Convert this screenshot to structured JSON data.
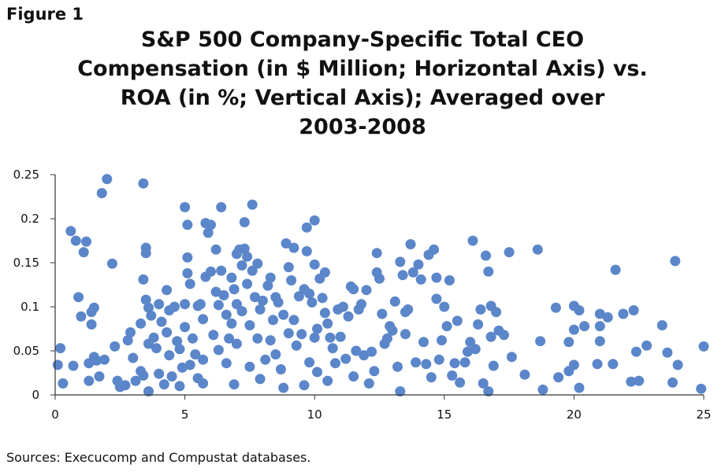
{
  "figure_label": "Figure 1",
  "title_lines": [
    "S&P 500 Company-Specific Total CEO",
    "Compensation (in $ Million; Horizontal Axis) vs.",
    "ROA (in %; Vertical Axis); Averaged over",
    "2003-2008"
  ],
  "source_note": "Sources: Execucomp and Compustat databases.",
  "colors": {
    "marker": "#5b86c9",
    "axis": "#333333"
  },
  "chart_data": {
    "type": "scatter",
    "title": "S&P 500 Company-Specific Total CEO Compensation (in $ Million; Horizontal Axis) vs. ROA (in %; Vertical Axis); Averaged over 2003-2008",
    "xlim": [
      0,
      25
    ],
    "ylim": [
      0,
      0.25
    ],
    "x_ticks": [
      "0",
      "5",
      "10",
      "15",
      "20",
      "25"
    ],
    "y_ticks": [
      "0",
      "0.05",
      "0.1",
      "0.15",
      "0.2",
      "0.25"
    ],
    "grid": false,
    "legend": "none",
    "points": [
      [
        0.1,
        0.034
      ],
      [
        0.2,
        0.053
      ],
      [
        0.3,
        0.013
      ],
      [
        0.6,
        0.186
      ],
      [
        0.7,
        0.033
      ],
      [
        0.8,
        0.175
      ],
      [
        0.9,
        0.111
      ],
      [
        1.0,
        0.089
      ],
      [
        1.1,
        0.162
      ],
      [
        1.2,
        0.174
      ],
      [
        1.3,
        0.036
      ],
      [
        1.3,
        0.016
      ],
      [
        1.4,
        0.08
      ],
      [
        1.4,
        0.094
      ],
      [
        1.5,
        0.099
      ],
      [
        1.5,
        0.043
      ],
      [
        1.6,
        0.039
      ],
      [
        1.7,
        0.021
      ],
      [
        1.8,
        0.229
      ],
      [
        1.9,
        0.04
      ],
      [
        2.0,
        0.245
      ],
      [
        2.2,
        0.149
      ],
      [
        2.3,
        0.055
      ],
      [
        2.4,
        0.016
      ],
      [
        2.5,
        0.009
      ],
      [
        2.7,
        0.011
      ],
      [
        2.8,
        0.062
      ],
      [
        2.9,
        0.071
      ],
      [
        3.0,
        0.042
      ],
      [
        3.1,
        0.016
      ],
      [
        3.3,
        0.081
      ],
      [
        3.3,
        0.027
      ],
      [
        3.4,
        0.022
      ],
      [
        3.4,
        0.24
      ],
      [
        3.4,
        0.131
      ],
      [
        3.5,
        0.167
      ],
      [
        3.5,
        0.161
      ],
      [
        3.5,
        0.108
      ],
      [
        3.6,
        0.099
      ],
      [
        3.6,
        0.058
      ],
      [
        3.6,
        0.004
      ],
      [
        3.7,
        0.09
      ],
      [
        3.8,
        0.065
      ],
      [
        3.9,
        0.053
      ],
      [
        4.0,
        0.103
      ],
      [
        4.0,
        0.024
      ],
      [
        4.1,
        0.083
      ],
      [
        4.2,
        0.012
      ],
      [
        4.3,
        0.119
      ],
      [
        4.3,
        0.071
      ],
      [
        4.4,
        0.096
      ],
      [
        4.4,
        0.045
      ],
      [
        4.5,
        0.021
      ],
      [
        4.6,
        0.1
      ],
      [
        4.7,
        0.061
      ],
      [
        4.8,
        0.052
      ],
      [
        4.8,
        0.01
      ],
      [
        4.9,
        0.031
      ],
      [
        5.0,
        0.103
      ],
      [
        5.0,
        0.077
      ],
      [
        5.0,
        0.213
      ],
      [
        5.1,
        0.193
      ],
      [
        5.1,
        0.156
      ],
      [
        5.1,
        0.138
      ],
      [
        5.2,
        0.126
      ],
      [
        5.2,
        0.034
      ],
      [
        5.3,
        0.064
      ],
      [
        5.4,
        0.046
      ],
      [
        5.5,
        0.101
      ],
      [
        5.5,
        0.019
      ],
      [
        5.6,
        0.103
      ],
      [
        5.7,
        0.086
      ],
      [
        5.7,
        0.04
      ],
      [
        5.7,
        0.013
      ],
      [
        5.8,
        0.134
      ],
      [
        5.8,
        0.195
      ],
      [
        5.9,
        0.184
      ],
      [
        6.0,
        0.193
      ],
      [
        6.0,
        0.14
      ],
      [
        6.1,
        0.068
      ],
      [
        6.2,
        0.165
      ],
      [
        6.2,
        0.117
      ],
      [
        6.3,
        0.102
      ],
      [
        6.3,
        0.051
      ],
      [
        6.4,
        0.213
      ],
      [
        6.4,
        0.141
      ],
      [
        6.5,
        0.113
      ],
      [
        6.6,
        0.091
      ],
      [
        6.6,
        0.036
      ],
      [
        6.7,
        0.064
      ],
      [
        6.8,
        0.133
      ],
      [
        6.8,
        0.081
      ],
      [
        6.9,
        0.12
      ],
      [
        6.9,
        0.012
      ],
      [
        7.0,
        0.16
      ],
      [
        7.0,
        0.103
      ],
      [
        7.0,
        0.058
      ],
      [
        7.1,
        0.165
      ],
      [
        7.2,
        0.147
      ],
      [
        7.2,
        0.095
      ],
      [
        7.3,
        0.196
      ],
      [
        7.3,
        0.166
      ],
      [
        7.4,
        0.157
      ],
      [
        7.4,
        0.126
      ],
      [
        7.5,
        0.079
      ],
      [
        7.5,
        0.032
      ],
      [
        7.6,
        0.216
      ],
      [
        7.6,
        0.141
      ],
      [
        7.7,
        0.111
      ],
      [
        7.8,
        0.149
      ],
      [
        7.8,
        0.064
      ],
      [
        7.9,
        0.097
      ],
      [
        7.9,
        0.018
      ],
      [
        8.0,
        0.107
      ],
      [
        8.1,
        0.04
      ],
      [
        8.2,
        0.124
      ],
      [
        8.3,
        0.133
      ],
      [
        8.3,
        0.062
      ],
      [
        8.4,
        0.085
      ],
      [
        8.5,
        0.111
      ],
      [
        8.5,
        0.046
      ],
      [
        8.6,
        0.105
      ],
      [
        8.7,
        0.029
      ],
      [
        8.8,
        0.091
      ],
      [
        8.8,
        0.008
      ],
      [
        8.9,
        0.172
      ],
      [
        9.0,
        0.145
      ],
      [
        9.0,
        0.07
      ],
      [
        9.1,
        0.13
      ],
      [
        9.2,
        0.167
      ],
      [
        9.2,
        0.085
      ],
      [
        9.3,
        0.056
      ],
      [
        9.4,
        0.112
      ],
      [
        9.5,
        0.069
      ],
      [
        9.6,
        0.12
      ],
      [
        9.6,
        0.011
      ],
      [
        9.7,
        0.19
      ],
      [
        9.7,
        0.163
      ],
      [
        9.8,
        0.115
      ],
      [
        9.8,
        0.037
      ],
      [
        9.9,
        0.105
      ],
      [
        10.0,
        0.198
      ],
      [
        10.0,
        0.148
      ],
      [
        10.0,
        0.065
      ],
      [
        10.1,
        0.075
      ],
      [
        10.1,
        0.026
      ],
      [
        10.2,
        0.132
      ],
      [
        10.3,
        0.11
      ],
      [
        10.4,
        0.093
      ],
      [
        10.4,
        0.139
      ],
      [
        10.5,
        0.081
      ],
      [
        10.5,
        0.016
      ],
      [
        10.6,
        0.065
      ],
      [
        10.7,
        0.053
      ],
      [
        10.8,
        0.036
      ],
      [
        10.9,
        0.097
      ],
      [
        11.0,
        0.066
      ],
      [
        11.1,
        0.1
      ],
      [
        11.2,
        0.041
      ],
      [
        11.3,
        0.089
      ],
      [
        11.4,
        0.123
      ],
      [
        11.5,
        0.12
      ],
      [
        11.5,
        0.021
      ],
      [
        11.6,
        0.05
      ],
      [
        11.7,
        0.097
      ],
      [
        11.8,
        0.103
      ],
      [
        11.9,
        0.045
      ],
      [
        12.0,
        0.119
      ],
      [
        12.1,
        0.013
      ],
      [
        12.2,
        0.049
      ],
      [
        12.3,
        0.027
      ],
      [
        12.4,
        0.161
      ],
      [
        12.4,
        0.139
      ],
      [
        12.5,
        0.132
      ],
      [
        12.6,
        0.092
      ],
      [
        12.7,
        0.058
      ],
      [
        12.8,
        0.064
      ],
      [
        12.9,
        0.078
      ],
      [
        13.0,
        0.073
      ],
      [
        13.1,
        0.106
      ],
      [
        13.2,
        0.032
      ],
      [
        13.3,
        0.151
      ],
      [
        13.3,
        0.004
      ],
      [
        13.4,
        0.136
      ],
      [
        13.5,
        0.094
      ],
      [
        13.5,
        0.069
      ],
      [
        13.6,
        0.097
      ],
      [
        13.7,
        0.171
      ],
      [
        13.8,
        0.139
      ],
      [
        13.9,
        0.037
      ],
      [
        14.0,
        0.148
      ],
      [
        14.1,
        0.131
      ],
      [
        14.2,
        0.06
      ],
      [
        14.3,
        0.035
      ],
      [
        14.4,
        0.159
      ],
      [
        14.5,
        0.02
      ],
      [
        14.6,
        0.165
      ],
      [
        14.7,
        0.133
      ],
      [
        14.7,
        0.109
      ],
      [
        14.8,
        0.04
      ],
      [
        14.9,
        0.062
      ],
      [
        15.0,
        0.1
      ],
      [
        15.1,
        0.078
      ],
      [
        15.2,
        0.13
      ],
      [
        15.3,
        0.022
      ],
      [
        15.4,
        0.036
      ],
      [
        15.5,
        0.084
      ],
      [
        15.6,
        0.014
      ],
      [
        15.8,
        0.037
      ],
      [
        15.9,
        0.049
      ],
      [
        16.0,
        0.06
      ],
      [
        16.1,
        0.175
      ],
      [
        16.2,
        0.052
      ],
      [
        16.3,
        0.08
      ],
      [
        16.4,
        0.097
      ],
      [
        16.5,
        0.013
      ],
      [
        16.6,
        0.158
      ],
      [
        16.7,
        0.004
      ],
      [
        16.7,
        0.14
      ],
      [
        16.8,
        0.101
      ],
      [
        16.8,
        0.066
      ],
      [
        16.9,
        0.033
      ],
      [
        17.0,
        0.094
      ],
      [
        17.1,
        0.073
      ],
      [
        17.3,
        0.068
      ],
      [
        17.5,
        0.162
      ],
      [
        17.6,
        0.043
      ],
      [
        18.1,
        0.023
      ],
      [
        18.6,
        0.165
      ],
      [
        18.7,
        0.061
      ],
      [
        18.8,
        0.006
      ],
      [
        19.3,
        0.099
      ],
      [
        19.4,
        0.02
      ],
      [
        19.8,
        0.06
      ],
      [
        19.8,
        0.027
      ],
      [
        20.0,
        0.101
      ],
      [
        20.0,
        0.074
      ],
      [
        20.0,
        0.034
      ],
      [
        20.2,
        0.096
      ],
      [
        20.2,
        0.008
      ],
      [
        20.4,
        0.078
      ],
      [
        20.9,
        0.035
      ],
      [
        21.0,
        0.061
      ],
      [
        21.0,
        0.078
      ],
      [
        21.0,
        0.092
      ],
      [
        21.3,
        0.088
      ],
      [
        21.5,
        0.035
      ],
      [
        21.6,
        0.142
      ],
      [
        21.9,
        0.092
      ],
      [
        22.2,
        0.015
      ],
      [
        22.3,
        0.096
      ],
      [
        22.4,
        0.049
      ],
      [
        22.5,
        0.016
      ],
      [
        22.8,
        0.056
      ],
      [
        23.4,
        0.079
      ],
      [
        23.6,
        0.048
      ],
      [
        23.8,
        0.014
      ],
      [
        23.9,
        0.152
      ],
      [
        24.0,
        0.034
      ],
      [
        24.9,
        0.007
      ],
      [
        25.0,
        0.055
      ]
    ]
  }
}
